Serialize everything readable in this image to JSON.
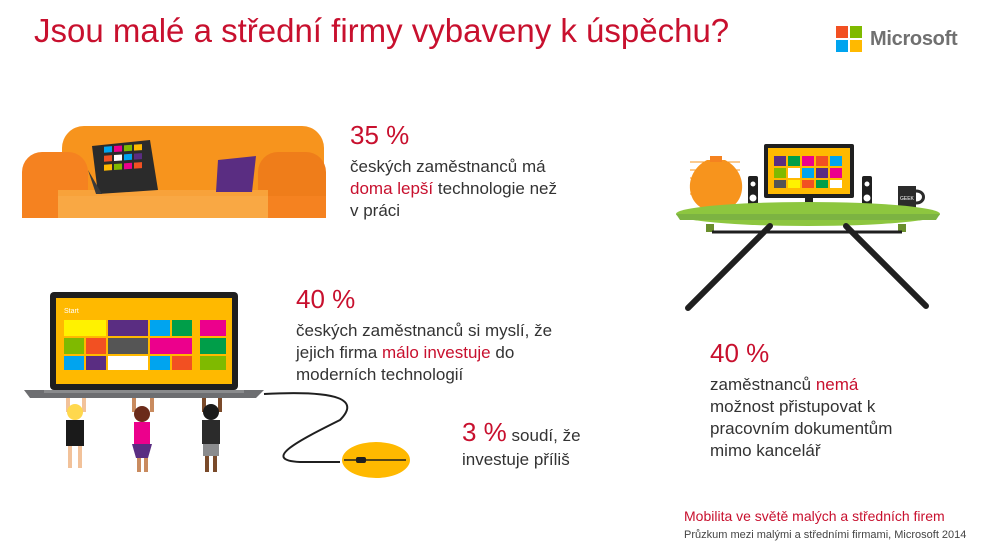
{
  "title": "Jsou malé a střední firmy vybaveny k úspěchu?",
  "logo": {
    "text": "Microsoft",
    "colors": [
      "#f25022",
      "#7fba00",
      "#00a4ef",
      "#ffb900"
    ]
  },
  "stats": [
    {
      "percent": "35 %",
      "desc_lines": [
        [
          {
            "text": "českých zaměstnanců má"
          }
        ],
        [
          {
            "text": "doma lepší",
            "hl": true
          },
          {
            "text": " technologie než"
          }
        ],
        [
          {
            "text": "v práci"
          }
        ]
      ]
    },
    {
      "percent": "40 %",
      "desc_lines": [
        [
          {
            "text": "českých zaměstnanců si myslí, že"
          }
        ],
        [
          {
            "text": "jejich firma "
          },
          {
            "text": "málo investuje",
            "hl": true
          },
          {
            "text": " do"
          }
        ],
        [
          {
            "text": "moderních technologií"
          }
        ]
      ]
    },
    {
      "percent": "3 %",
      "desc_lines": [
        [
          {
            "text": "soudí, že"
          }
        ],
        [
          {
            "text": "investuje příliš"
          }
        ]
      ]
    },
    {
      "percent": "40 %",
      "desc_lines": [
        [
          {
            "text": "zaměstnanců "
          },
          {
            "text": "nemá",
            "hl": true
          }
        ],
        [
          {
            "text": "možnost přistupovat k"
          }
        ],
        [
          {
            "text": "pracovním dokumentům"
          }
        ],
        [
          {
            "text": "mimo kancelář"
          }
        ]
      ]
    }
  ],
  "laptop_screen_label": "Start",
  "mug_label": "GEEK",
  "footer": {
    "line1": "Mobilita ve světě malých a středních firem",
    "line2": "Průzkum mezi malými a středními firmami, Microsoft 2014"
  },
  "colors": {
    "accent": "#c8102e",
    "sofa": "#f7941d",
    "table": "#8dc63f"
  }
}
